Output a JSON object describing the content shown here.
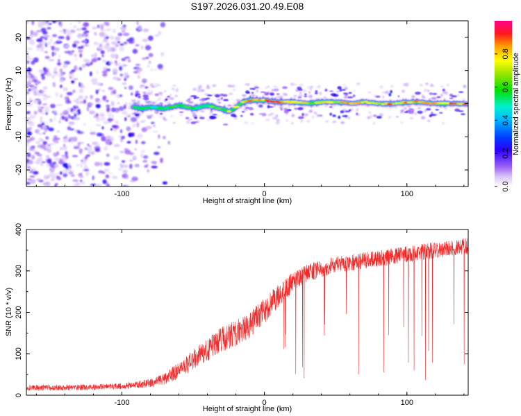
{
  "title": "S197.2026.031.20.49.E08",
  "colors": {
    "signal": "#f02a2a",
    "noise": "#8a4ff0",
    "frame": "#000000"
  },
  "chart_data": [
    {
      "type": "heatmap",
      "title": "S197.2026.031.20.49.E08",
      "xlabel": "Height of straight line (km)",
      "ylabel": "Frequency (Hz)",
      "xlim": [
        -167,
        143
      ],
      "ylim": [
        -25,
        25
      ],
      "x_ticks": [
        -100,
        0,
        100
      ],
      "x_tick_labels": [
        "-100",
        "0",
        "100"
      ],
      "y_ticks": [
        -20,
        -10,
        0,
        10,
        20
      ],
      "y_tick_labels": [
        "-20",
        "-10",
        "0",
        "10",
        "20"
      ],
      "colorbar": {
        "label": "Normalized spectral amplitude",
        "range": [
          0,
          1
        ],
        "ticks": [
          0,
          0.2,
          0.4,
          0.6,
          0.8
        ],
        "tick_labels": [
          "0.0",
          "0.2",
          "0.4",
          "0.6",
          "0.8"
        ],
        "colormap": "rainbow (white-violet-blue-cyan-green-yellow-orange-red-magenta)"
      },
      "noise_region": {
        "x_range": [
          -167,
          -80
        ],
        "level": 0.15
      },
      "signal_track": {
        "x": [
          -92,
          -85,
          -80,
          -70,
          -60,
          -50,
          -40,
          -30,
          -25,
          -20,
          -15,
          -10,
          0,
          10,
          20,
          30,
          40,
          50,
          60,
          70,
          80,
          90,
          100,
          110,
          120,
          130,
          140
        ],
        "frequency": [
          -1,
          -1.5,
          -1,
          -1.5,
          -0.5,
          -1.5,
          -0.5,
          -1.5,
          -2.5,
          -1,
          0.5,
          1,
          1,
          0.5,
          0.5,
          0,
          0.5,
          0.5,
          0,
          0.5,
          0,
          0,
          0.5,
          0.5,
          0,
          0,
          0
        ],
        "amplitude": [
          0.15,
          0.25,
          0.45,
          0.55,
          0.65,
          0.6,
          0.6,
          0.65,
          0.7,
          0.7,
          0.75,
          0.85,
          0.85,
          0.85,
          0.9,
          0.7,
          0.7,
          0.8,
          0.8,
          0.75,
          0.8,
          0.85,
          0.85,
          0.85,
          0.9,
          0.85,
          0.9
        ]
      }
    },
    {
      "type": "line",
      "xlabel": "Height of straight line (km)",
      "ylabel": "SNR (10 * v/v)",
      "xlim": [
        -167,
        143
      ],
      "ylim": [
        0,
        400
      ],
      "x_ticks": [
        -100,
        0,
        100
      ],
      "x_tick_labels": [
        "-100",
        "0",
        "100"
      ],
      "y_ticks": [
        0,
        100,
        200,
        300,
        400
      ],
      "y_tick_labels": [
        "0",
        "100",
        "200",
        "300",
        "400"
      ],
      "series": [
        {
          "name": "SNR",
          "color": "#f02a2a",
          "x": [
            -167,
            -150,
            -130,
            -110,
            -100,
            -90,
            -80,
            -70,
            -60,
            -50,
            -40,
            -30,
            -20,
            -10,
            0,
            10,
            20,
            30,
            40,
            50,
            60,
            70,
            80,
            90,
            100,
            110,
            120,
            130,
            140,
            143
          ],
          "snr": [
            18,
            18,
            19,
            20,
            22,
            25,
            30,
            40,
            60,
            85,
            110,
            135,
            150,
            170,
            205,
            240,
            275,
            295,
            305,
            315,
            320,
            325,
            330,
            335,
            340,
            345,
            350,
            355,
            360,
            360
          ],
          "noise_spread": [
            10,
            10,
            10,
            10,
            11,
            12,
            15,
            20,
            28,
            35,
            40,
            42,
            44,
            45,
            45,
            42,
            35,
            30,
            30,
            28,
            28,
            28,
            28,
            28,
            28,
            28,
            28,
            28,
            28,
            28
          ],
          "dropouts_after_x": 15
        }
      ]
    }
  ]
}
